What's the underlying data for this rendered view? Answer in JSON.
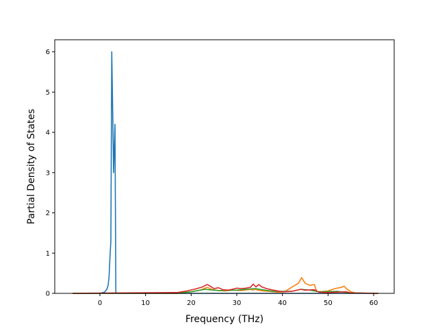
{
  "chart_data": {
    "type": "line",
    "title": "",
    "xlabel": "Frequency (THz)",
    "ylabel": "Partial Density of States",
    "xlim": [
      -9.9,
      64.5
    ],
    "ylim": [
      0,
      6.3
    ],
    "xticks": [
      0,
      10,
      20,
      30,
      40,
      50,
      60
    ],
    "yticks": [
      0,
      1,
      2,
      3,
      4,
      5,
      6
    ],
    "grid": false,
    "legend": "none",
    "series": [
      {
        "color": "#1f77b4",
        "x": [
          -6.0,
          0.0,
          1.0,
          1.5,
          1.8,
          2.0,
          2.2,
          2.4,
          2.6,
          2.8,
          3.0,
          3.3,
          3.5,
          3.6,
          10,
          20,
          30,
          40,
          50,
          61.0
        ],
        "y": [
          0,
          0,
          0.03,
          0.1,
          0.2,
          0.4,
          0.9,
          1.3,
          6.0,
          4.5,
          3.0,
          4.2,
          0,
          0,
          0,
          0,
          0,
          0,
          0,
          0
        ]
      },
      {
        "color": "#ff7f0e",
        "x": [
          -6.0,
          17.0,
          18.0,
          20.0,
          22.0,
          23.5,
          24.5,
          26.0,
          27.5,
          29.0,
          31.0,
          33.0,
          33.5,
          34.0,
          35.0,
          37.0,
          39.0,
          40.5,
          42.0,
          43.5,
          44.2,
          45.0,
          46.0,
          47.0,
          47.5,
          48.0,
          50.0,
          51.5,
          53.0,
          53.5,
          54.0,
          55.0,
          56.0,
          61.0
        ],
        "y": [
          0,
          0,
          0.02,
          0.04,
          0.08,
          0.15,
          0.1,
          0.07,
          0.06,
          0.08,
          0.07,
          0.1,
          0.08,
          0.1,
          0.07,
          0.05,
          0.03,
          0.04,
          0.15,
          0.25,
          0.39,
          0.25,
          0.2,
          0.22,
          0.05,
          0.04,
          0.06,
          0.12,
          0.15,
          0.18,
          0.12,
          0.04,
          0.01,
          0
        ]
      },
      {
        "color": "#2ca02c",
        "x": [
          -6.0,
          17.0,
          20.0,
          23.0,
          26.0,
          30.0,
          34.0,
          38.0,
          42.0,
          44.0,
          46.0,
          48.0,
          52.0,
          55.0,
          61.0
        ],
        "y": [
          0,
          0,
          0.04,
          0.1,
          0.07,
          0.08,
          0.12,
          0.05,
          0.05,
          0.1,
          0.08,
          0.04,
          0.05,
          0.01,
          0
        ]
      },
      {
        "color": "#d62728",
        "x": [
          -6.0,
          17.0,
          19.0,
          21.0,
          22.5,
          23.5,
          24.0,
          25.0,
          26.0,
          27.0,
          28.0,
          29.0,
          30.0,
          31.0,
          32.0,
          33.0,
          33.6,
          34.2,
          34.8,
          35.5,
          36.5,
          38.0,
          40.0,
          42.0,
          44.0,
          45.0,
          47.0,
          48.0,
          50.0,
          52.0,
          54.0,
          55.0,
          61.0
        ],
        "y": [
          0,
          0.02,
          0.06,
          0.11,
          0.16,
          0.22,
          0.19,
          0.12,
          0.14,
          0.09,
          0.08,
          0.1,
          0.13,
          0.12,
          0.13,
          0.15,
          0.23,
          0.16,
          0.22,
          0.16,
          0.12,
          0.08,
          0.04,
          0.05,
          0.1,
          0.08,
          0.09,
          0.03,
          0.02,
          0.03,
          0.04,
          0.01,
          0
        ]
      }
    ]
  }
}
